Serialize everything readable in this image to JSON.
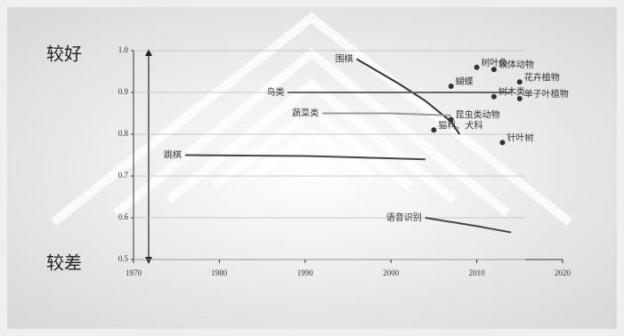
{
  "chart_data": {
    "type": "line",
    "y_top_label": "较好",
    "y_bottom_label": "较差",
    "xlim": [
      1970,
      2020
    ],
    "xticks": [
      1970,
      1980,
      1990,
      2000,
      2010,
      2020
    ],
    "ylim": [
      0.5,
      1.0
    ],
    "yticks": [
      0.5,
      0.6,
      0.7,
      0.8,
      0.9,
      {
        "value": 1.0,
        "label": "1.0"
      }
    ],
    "grid": true,
    "series": [
      {
        "name": "围棋",
        "color": "#333333",
        "x": [
          1996,
          2001,
          2004,
          2007,
          2008
        ],
        "values": [
          0.98,
          0.92,
          0.88,
          0.83,
          0.8
        ]
      },
      {
        "name": "鸟类",
        "color": "#666666",
        "x": [
          1988,
          2000,
          2014
        ],
        "values": [
          0.9,
          0.9,
          0.9
        ]
      },
      {
        "name": "蔬菜类",
        "color": "#9a9a9a",
        "x": [
          1992,
          2000,
          2007
        ],
        "values": [
          0.85,
          0.85,
          0.845
        ]
      },
      {
        "name": "跳棋",
        "color": "#444444",
        "x": [
          1976,
          1990,
          2004
        ],
        "values": [
          0.75,
          0.748,
          0.74
        ]
      },
      {
        "name": "语音识别",
        "color": "#444444",
        "x": [
          2004,
          2010,
          2014
        ],
        "values": [
          0.6,
          0.58,
          0.565
        ]
      }
    ],
    "points": [
      {
        "name": "树叶鱼",
        "x": 2010,
        "y": 0.96
      },
      {
        "name": "软体动物",
        "x": 2012,
        "y": 0.955
      },
      {
        "name": "蝴蝶",
        "x": 2007,
        "y": 0.915
      },
      {
        "name": "花卉植物",
        "x": 2015,
        "y": 0.925
      },
      {
        "name": "树木类",
        "x": 2012,
        "y": 0.89
      },
      {
        "name": "单子叶植物",
        "x": 2015,
        "y": 0.885
      },
      {
        "name": "昆虫类动物",
        "x": 2007,
        "y": 0.835
      },
      {
        "name": "猫科、犬科",
        "x": 2005,
        "y": 0.81
      },
      {
        "name": "针叶树",
        "x": 2013,
        "y": 0.78
      }
    ]
  }
}
